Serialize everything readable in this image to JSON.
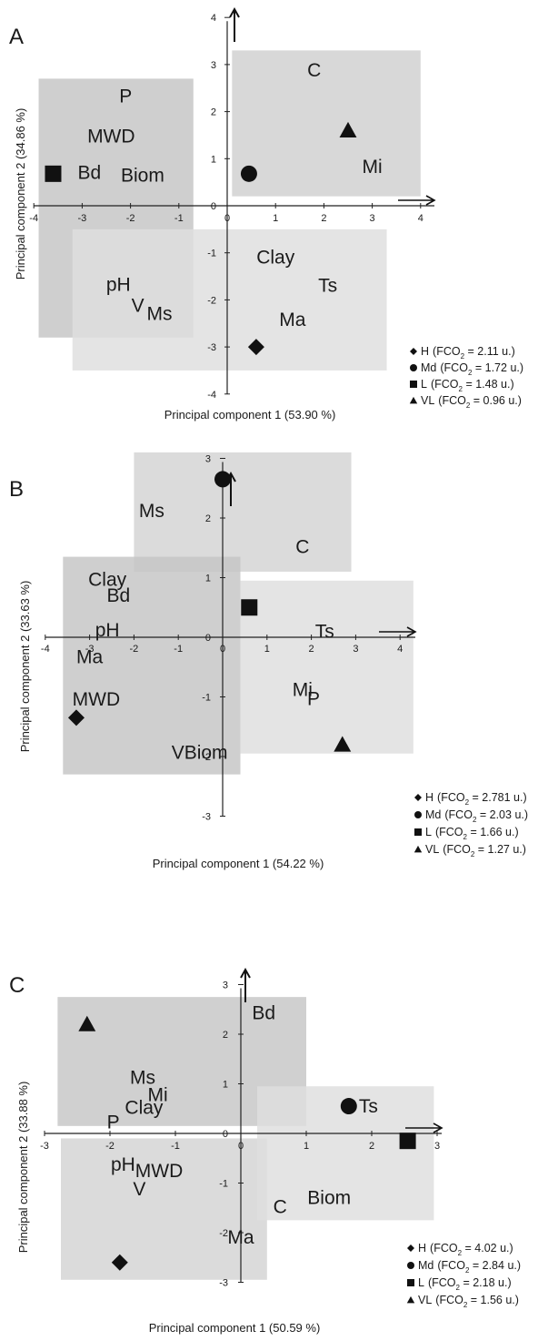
{
  "chart_data": [
    {
      "type": "scatter",
      "panel": "A",
      "xlabel": "Principal component 1 (53.90 %)",
      "ylabel": "Principal component 2 (34.86 %)",
      "xlim": [
        -4,
        4
      ],
      "ylim": [
        -4,
        4
      ],
      "xticks": [
        -4,
        -3,
        -2,
        -1,
        0,
        1,
        2,
        3,
        4
      ],
      "yticks": [
        -4,
        -3,
        -2,
        -1,
        0,
        1,
        2,
        3,
        4
      ],
      "regions": [
        {
          "x": [
            -3.9,
            -0.7
          ],
          "y": [
            -2.8,
            2.7
          ],
          "shade": "#c4c4c4"
        },
        {
          "x": [
            0.1,
            4.0
          ],
          "y": [
            0.2,
            3.3
          ],
          "shade": "#d0d0d0"
        },
        {
          "x": [
            -3.2,
            3.3
          ],
          "y": [
            -3.5,
            -0.5
          ],
          "shade": "#dedede"
        }
      ],
      "points": [
        {
          "group": "H",
          "marker": "diamond",
          "x": 0.6,
          "y": -3.0
        },
        {
          "group": "Md",
          "marker": "circle",
          "x": 0.45,
          "y": 0.68
        },
        {
          "group": "L",
          "marker": "square",
          "x": -3.6,
          "y": 0.68
        },
        {
          "group": "VL",
          "marker": "triangle",
          "x": 2.5,
          "y": 1.6
        }
      ],
      "variables": [
        {
          "label": "P",
          "x": -2.1,
          "y": 2.3
        },
        {
          "label": "MWD",
          "x": -2.4,
          "y": 1.45
        },
        {
          "label": "Bd",
          "x": -2.85,
          "y": 0.68
        },
        {
          "label": "Biom",
          "x": -1.75,
          "y": 0.62
        },
        {
          "label": "C",
          "x": 1.8,
          "y": 2.85
        },
        {
          "label": "Mi",
          "x": 3.0,
          "y": 0.8
        },
        {
          "label": "Clay",
          "x": 1.0,
          "y": -1.12
        },
        {
          "label": "Ts",
          "x": 2.08,
          "y": -1.72
        },
        {
          "label": "pH",
          "x": -2.25,
          "y": -1.7
        },
        {
          "label": "V",
          "x": -1.85,
          "y": -2.15
        },
        {
          "label": "Ms",
          "x": -1.4,
          "y": -2.32
        },
        {
          "label": "Ma",
          "x": 1.35,
          "y": -2.45
        }
      ],
      "legend": [
        {
          "marker": "diamond",
          "label": "H",
          "prefix": "(FCO",
          "sub": "2",
          "suffix": " = 2.11 u.)"
        },
        {
          "marker": "circle",
          "label": "Md",
          "prefix": "(FCO",
          "sub": "2",
          "suffix": " = 1.72 u.)"
        },
        {
          "marker": "square",
          "label": "L",
          "prefix": "(FCO",
          "sub": "2",
          "suffix": " = 1.48 u.)"
        },
        {
          "marker": "triangle",
          "label": "VL",
          "prefix": "(FCO",
          "sub": "2",
          "suffix": " = 0.96 u.)"
        }
      ]
    },
    {
      "type": "scatter",
      "panel": "B",
      "xlabel": "Principal component 1 (54.22 %)",
      "ylabel": "Principal component 2 (33.63 %)",
      "xlim": [
        -4,
        4
      ],
      "ylim": [
        -3,
        3
      ],
      "xticks": [
        -4,
        -3,
        -2,
        -1,
        0,
        1,
        2,
        3,
        4
      ],
      "yticks": [
        -3,
        -2,
        -1,
        0,
        1,
        2,
        3
      ],
      "regions": [
        {
          "x": [
            -2.0,
            2.9
          ],
          "y": [
            1.1,
            3.1
          ],
          "shade": "#d3d3d3"
        },
        {
          "x": [
            -3.6,
            0.4
          ],
          "y": [
            -2.3,
            1.35
          ],
          "shade": "#c4c4c4"
        },
        {
          "x": [
            0.4,
            4.3
          ],
          "y": [
            -1.95,
            0.95
          ],
          "shade": "#dedede"
        }
      ],
      "points": [
        {
          "group": "H",
          "marker": "diamond",
          "x": -3.3,
          "y": -1.35
        },
        {
          "group": "Md",
          "marker": "circle",
          "x": 0.0,
          "y": 2.65
        },
        {
          "group": "L",
          "marker": "square",
          "x": 0.6,
          "y": 0.5
        },
        {
          "group": "VL",
          "marker": "triangle",
          "x": 2.7,
          "y": -1.8
        }
      ],
      "variables": [
        {
          "label": "Ms",
          "x": -1.6,
          "y": 2.1
        },
        {
          "label": "C",
          "x": 1.8,
          "y": 1.5
        },
        {
          "label": "Clay",
          "x": -2.6,
          "y": 0.95
        },
        {
          "label": "Bd",
          "x": -2.35,
          "y": 0.68
        },
        {
          "label": "pH",
          "x": -2.6,
          "y": 0.1
        },
        {
          "label": "Ma",
          "x": -3.0,
          "y": -0.35
        },
        {
          "label": "Ts",
          "x": 2.3,
          "y": 0.08
        },
        {
          "label": "Mi",
          "x": 1.8,
          "y": -0.9
        },
        {
          "label": "P",
          "x": 2.05,
          "y": -1.05
        },
        {
          "label": "MWD",
          "x": -2.85,
          "y": -1.06
        },
        {
          "label": "VBiom",
          "x": -0.52,
          "y": -1.95
        }
      ],
      "legend": [
        {
          "marker": "diamond",
          "label": "H",
          "prefix": "(FCO",
          "sub": "2",
          "suffix": " = 2.781 u.)"
        },
        {
          "marker": "circle",
          "label": "Md",
          "prefix": "(FCO",
          "sub": "2",
          "suffix": " = 2.03 u.)"
        },
        {
          "marker": "square",
          "label": "L",
          "prefix": "(FCO",
          "sub": "2",
          "suffix": " = 1.66 u.)"
        },
        {
          "marker": "triangle",
          "label": "VL",
          "prefix": "(FCO",
          "sub": "2",
          "suffix": " = 1.27 u.)"
        }
      ]
    },
    {
      "type": "scatter",
      "panel": "C",
      "xlabel": "Principal component 1 (50.59 %)",
      "ylabel": "Principal component 2 (33.88 %)",
      "xlim": [
        -3,
        3
      ],
      "ylim": [
        -3,
        3
      ],
      "xticks": [
        -3,
        -2,
        -1,
        0,
        1,
        2,
        3
      ],
      "yticks": [
        -3,
        -2,
        -1,
        0,
        1,
        2,
        3
      ],
      "regions": [
        {
          "x": [
            -2.8,
            1.0
          ],
          "y": [
            0.15,
            2.75
          ],
          "shade": "#c6c6c6"
        },
        {
          "x": [
            -2.75,
            0.4
          ],
          "y": [
            -2.95,
            -0.1
          ],
          "shade": "#d3d3d3"
        },
        {
          "x": [
            0.25,
            2.95
          ],
          "y": [
            -1.75,
            0.95
          ],
          "shade": "#dedede"
        }
      ],
      "points": [
        {
          "group": "H",
          "marker": "diamond",
          "x": -1.85,
          "y": -2.6
        },
        {
          "group": "Md",
          "marker": "circle",
          "x": 1.65,
          "y": 0.55
        },
        {
          "group": "L",
          "marker": "square",
          "x": 2.55,
          "y": -0.15
        },
        {
          "group": "VL",
          "marker": "triangle",
          "x": -2.35,
          "y": 2.2
        }
      ],
      "variables": [
        {
          "label": "Bd",
          "x": 0.35,
          "y": 2.4
        },
        {
          "label": "Ms",
          "x": -1.5,
          "y": 1.1
        },
        {
          "label": "Mi",
          "x": -1.27,
          "y": 0.75
        },
        {
          "label": "Clay",
          "x": -1.48,
          "y": 0.5
        },
        {
          "label": "P",
          "x": -1.95,
          "y": 0.2
        },
        {
          "label": "Ts",
          "x": 1.95,
          "y": 0.52
        },
        {
          "label": "pH",
          "x": -1.8,
          "y": -0.65
        },
        {
          "label": "MWD",
          "x": -1.25,
          "y": -0.78
        },
        {
          "label": "V",
          "x": -1.55,
          "y": -1.15
        },
        {
          "label": "C",
          "x": 0.6,
          "y": -1.5
        },
        {
          "label": "Biom",
          "x": 1.35,
          "y": -1.32
        },
        {
          "label": "Ma",
          "x": 0.0,
          "y": -2.12
        }
      ],
      "legend": [
        {
          "marker": "diamond",
          "label": "H",
          "prefix": "(FCO",
          "sub": "2",
          "suffix": " = 4.02 u.)"
        },
        {
          "marker": "circle",
          "label": "Md",
          "prefix": "(FCO",
          "sub": "2",
          "suffix": " = 2.84 u.)"
        },
        {
          "marker": "square",
          "label": "L",
          "prefix": "(FCO",
          "sub": "2",
          "suffix": " = 2.18 u.)"
        },
        {
          "marker": "triangle",
          "label": "VL",
          "prefix": "(FCO",
          "sub": "2",
          "suffix": " = 1.56 u.)"
        }
      ]
    }
  ]
}
